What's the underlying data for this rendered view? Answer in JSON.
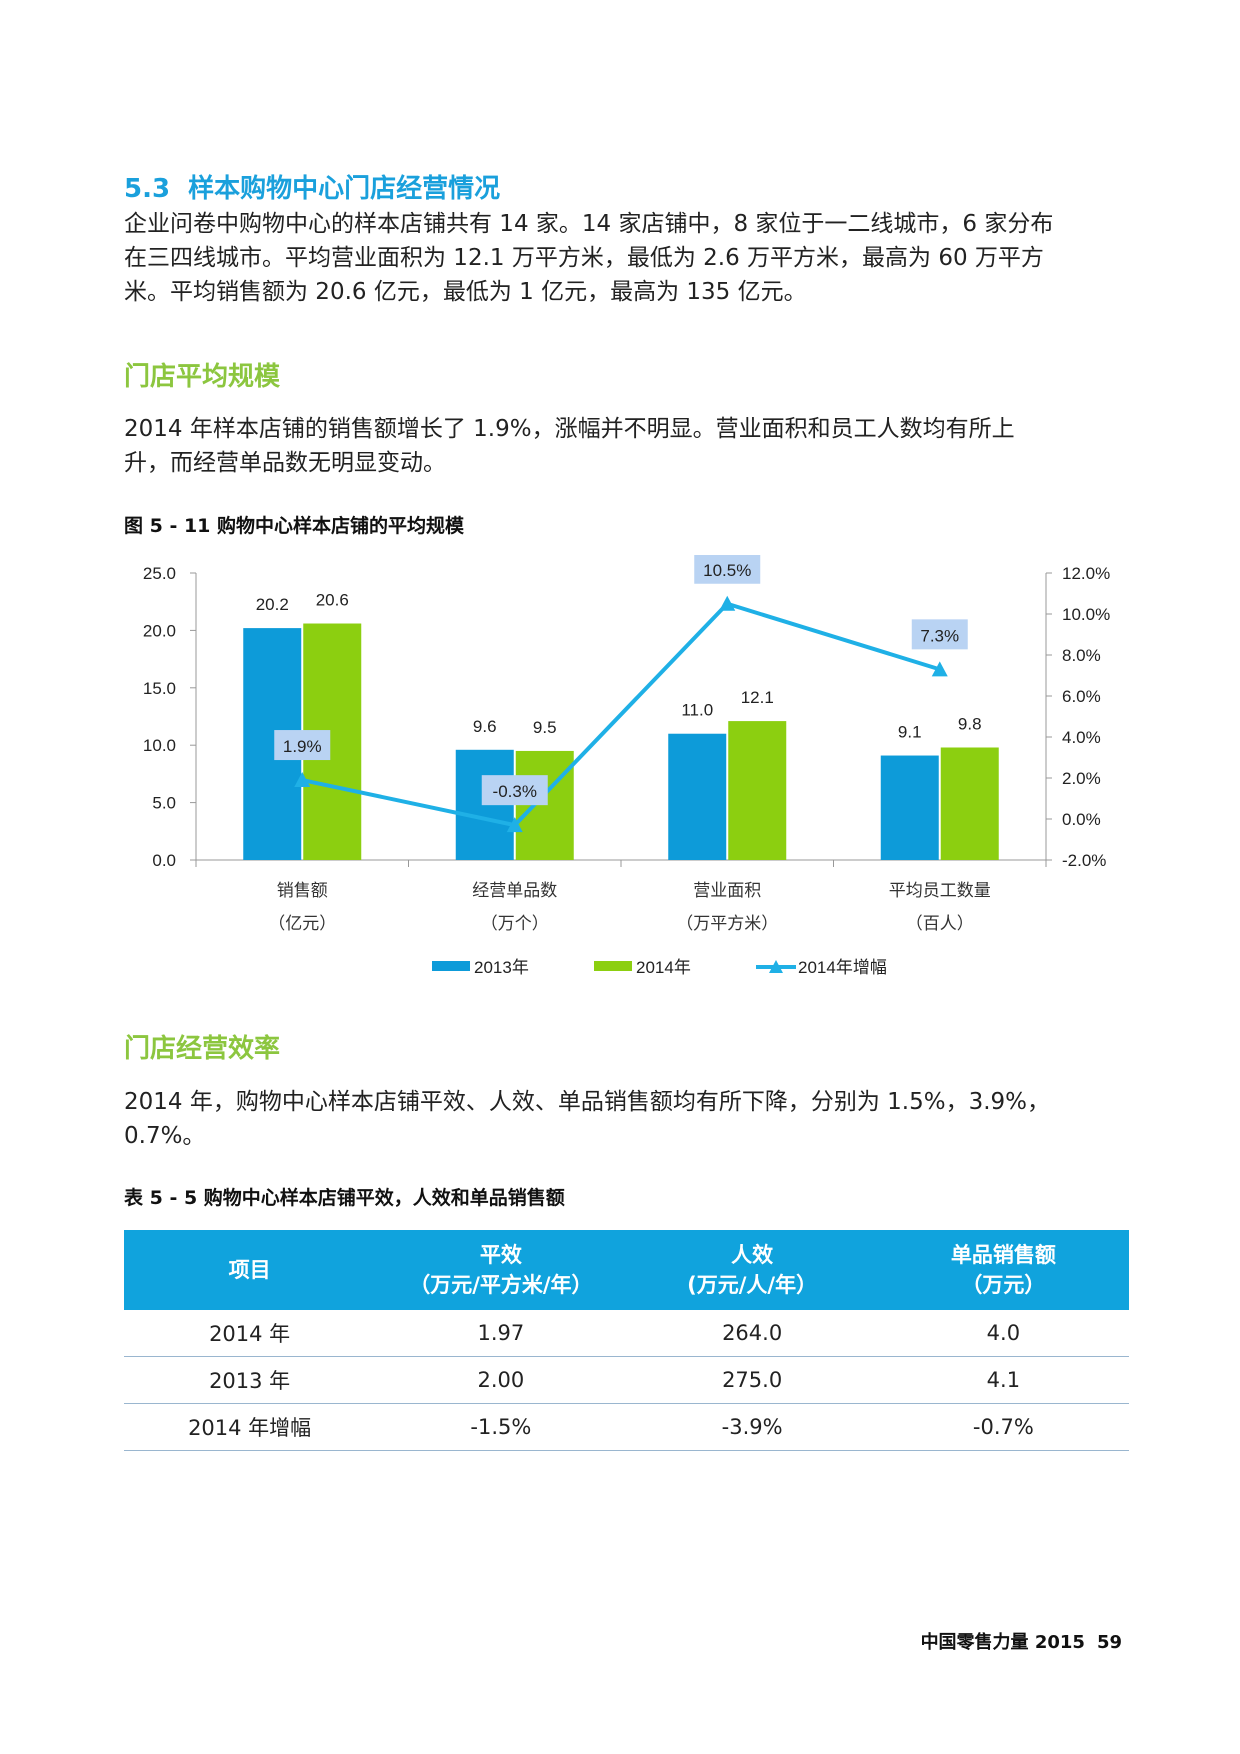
{
  "section": {
    "number": "5.3",
    "title": "样本购物中心门店经营情况"
  },
  "intro_lines": [
    "企业问卷中购物中心的样本店铺共有 14 家。14 家店铺中，8 家位于一二线城市，6 家分布",
    "在三四线城市。平均营业面积为 12.1 万平方米，最低为 2.6 万平方米，最高为 60 万平方",
    "米。平均销售额为 20.6 亿元，最低为 1 亿元，最高为 135 亿元。"
  ],
  "sub1": {
    "title": "门店平均规模",
    "lines": [
      "2014 年样本店铺的销售额增长了 1.9%，涨幅并不明显。营业面积和员工人数均有所上",
      "升，而经营单品数无明显变动。"
    ]
  },
  "figure_caption": "图 5 - 11 购物中心样本店铺的平均规模",
  "chart_data": {
    "type": "bar",
    "categories": [
      "销售额",
      "经营单品数",
      "营业面积",
      "平均员工数量"
    ],
    "category_units": [
      "（亿元）",
      "（万个）",
      "（万平方米）",
      "（百人）"
    ],
    "series": [
      {
        "name": "2013年",
        "type": "bar",
        "axis": "left",
        "values": [
          20.2,
          9.6,
          11.0,
          9.1
        ],
        "labels": [
          "20.2",
          "9.6",
          "11.0",
          "9.1"
        ],
        "color": "#0d9bd9"
      },
      {
        "name": "2014年",
        "type": "bar",
        "axis": "left",
        "values": [
          20.6,
          9.5,
          12.1,
          9.8
        ],
        "labels": [
          "20.6",
          "9.5",
          "12.1",
          "9.8"
        ],
        "color": "#8ccf10"
      },
      {
        "name": "2014年增幅",
        "type": "line",
        "axis": "right",
        "values": [
          1.9,
          -0.3,
          10.5,
          7.3
        ],
        "labels": [
          "1.9%",
          "-0.3%",
          "10.5%",
          "7.3%"
        ],
        "color": "#1fb0e6"
      }
    ],
    "y_left": {
      "min": 0,
      "max": 25,
      "ticks": [
        "0.0",
        "5.0",
        "10.0",
        "15.0",
        "20.0",
        "25.0"
      ]
    },
    "y_right": {
      "min": -2,
      "max": 12,
      "ticks": [
        "-2.0%",
        "0.0%",
        "2.0%",
        "4.0%",
        "6.0%",
        "8.0%",
        "10.0%",
        "12.0%"
      ]
    },
    "legend": "bottom",
    "grid": false
  },
  "sub2": {
    "title": "门店经营效率",
    "lines": [
      "2014 年，购物中心样本店铺平效、人效、单品销售额均有所下降，分别为 1.5%，3.9%，",
      "0.7%。"
    ]
  },
  "table": {
    "caption": "表 5 - 5 购物中心样本店铺平效，人效和单品销售额",
    "headers": [
      [
        "项目"
      ],
      [
        "平效",
        "（万元/平方米/年）"
      ],
      [
        "人效",
        "(万元/人/年）"
      ],
      [
        "单品销售额",
        "（万元）"
      ]
    ],
    "rows": [
      [
        "2014 年",
        "1.97",
        "264.0",
        "4.0"
      ],
      [
        "2013 年",
        "2.00",
        "275.0",
        "4.1"
      ],
      [
        "2014 年增幅",
        "-1.5%",
        "-3.9%",
        "-0.7%"
      ]
    ]
  },
  "footer": {
    "title": "中国零售力量 2015",
    "page": "59"
  }
}
